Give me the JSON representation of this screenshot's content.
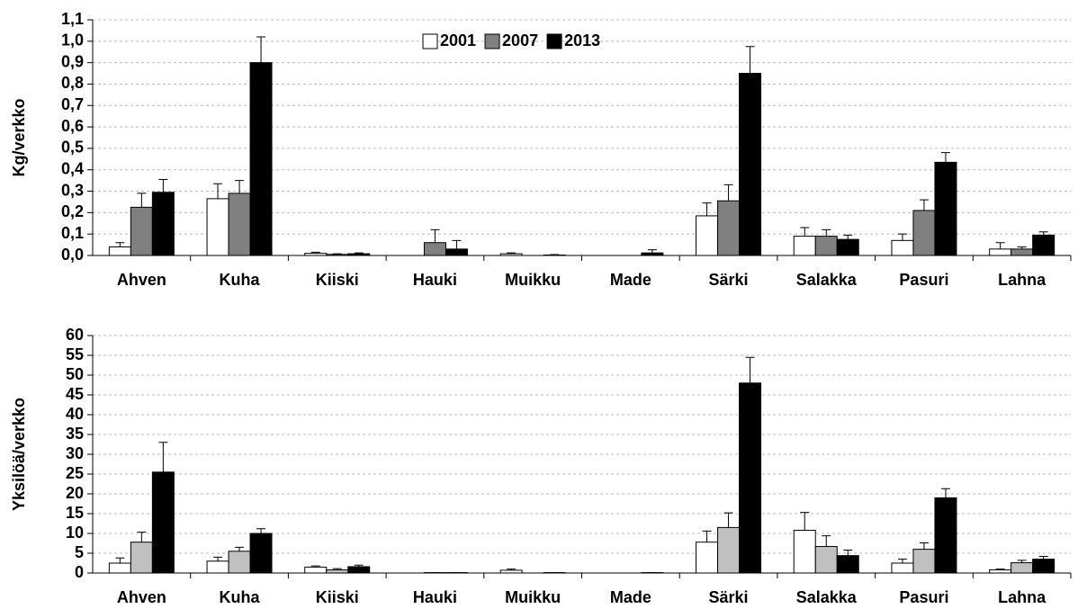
{
  "chart_data": [
    {
      "type": "bar",
      "ylabel": "Kg/verkko",
      "categories": [
        "Ahven",
        "Kuha",
        "Kiiski",
        "Hauki",
        "Muikku",
        "Made",
        "Särki",
        "Salakka",
        "Pasuri",
        "Lahna"
      ],
      "series": [
        {
          "name": "2001",
          "color": "#ffffff",
          "values": [
            0.04,
            0.265,
            0.01,
            0,
            0.008,
            0,
            0.185,
            0.09,
            0.07,
            0.03
          ],
          "errors": [
            0.02,
            0.07,
            0.005,
            0,
            0.004,
            0,
            0.06,
            0.04,
            0.03,
            0.03
          ]
        },
        {
          "name": "2007",
          "color": "#808080",
          "values": [
            0.225,
            0.29,
            0.005,
            0.06,
            0,
            0,
            0.255,
            0.09,
            0.21,
            0.03
          ],
          "errors": [
            0.065,
            0.06,
            0.003,
            0.06,
            0,
            0,
            0.075,
            0.03,
            0.05,
            0.01
          ]
        },
        {
          "name": "2013",
          "color": "#000000",
          "values": [
            0.295,
            0.9,
            0.008,
            0.03,
            0.002,
            0.012,
            0.85,
            0.075,
            0.435,
            0.095
          ],
          "errors": [
            0.06,
            0.12,
            0.004,
            0.04,
            0.002,
            0.015,
            0.125,
            0.02,
            0.045,
            0.015
          ]
        }
      ],
      "ylim": [
        0,
        1.1
      ],
      "yticks": [
        {
          "value": 0,
          "label": "0,0"
        },
        {
          "value": 0.1,
          "label": "0,1"
        },
        {
          "value": 0.2,
          "label": "0,2"
        },
        {
          "value": 0.3,
          "label": "0,3"
        },
        {
          "value": 0.4,
          "label": "0,4"
        },
        {
          "value": 0.5,
          "label": "0,5"
        },
        {
          "value": 0.6,
          "label": "0,6"
        },
        {
          "value": 0.7,
          "label": "0,7"
        },
        {
          "value": 0.8,
          "label": "0,8"
        },
        {
          "value": 0.9,
          "label": "0,9"
        },
        {
          "value": 1.0,
          "label": "1,0"
        },
        {
          "value": 1.1,
          "label": "1,1"
        }
      ],
      "grid": true,
      "legend": "top"
    },
    {
      "type": "bar",
      "ylabel": "Yksilöä/verkko",
      "categories": [
        "Ahven",
        "Kuha",
        "Kiiski",
        "Hauki",
        "Muikku",
        "Made",
        "Särki",
        "Salakka",
        "Pasuri",
        "Lahna"
      ],
      "series": [
        {
          "color": "#ffffff",
          "values": [
            2.5,
            3,
            1.5,
            0,
            0.7,
            0,
            7.8,
            10.8,
            2.5,
            0.8
          ],
          "errors": [
            1.3,
            1,
            0.3,
            0,
            0.3,
            0,
            2.8,
            4.5,
            1,
            0.2
          ]
        },
        {
          "color": "#c0c0c0",
          "values": [
            7.8,
            5.5,
            0.8,
            0.1,
            0,
            0,
            11.5,
            6.7,
            6,
            2.6
          ],
          "errors": [
            2.5,
            1,
            0.3,
            0,
            0,
            0,
            3.7,
            2.7,
            1.6,
            0.6
          ]
        },
        {
          "color": "#000000",
          "values": [
            25.5,
            10,
            1.6,
            0.1,
            0.1,
            0.1,
            48,
            4.4,
            19,
            3.5
          ],
          "errors": [
            7.5,
            1.2,
            0.4,
            0,
            0,
            0,
            6.5,
            1.4,
            2.3,
            0.7
          ]
        }
      ],
      "ylim": [
        0,
        60
      ],
      "yticks": [
        0,
        5,
        10,
        15,
        20,
        25,
        30,
        35,
        40,
        45,
        50,
        55,
        60
      ],
      "grid": true
    }
  ]
}
